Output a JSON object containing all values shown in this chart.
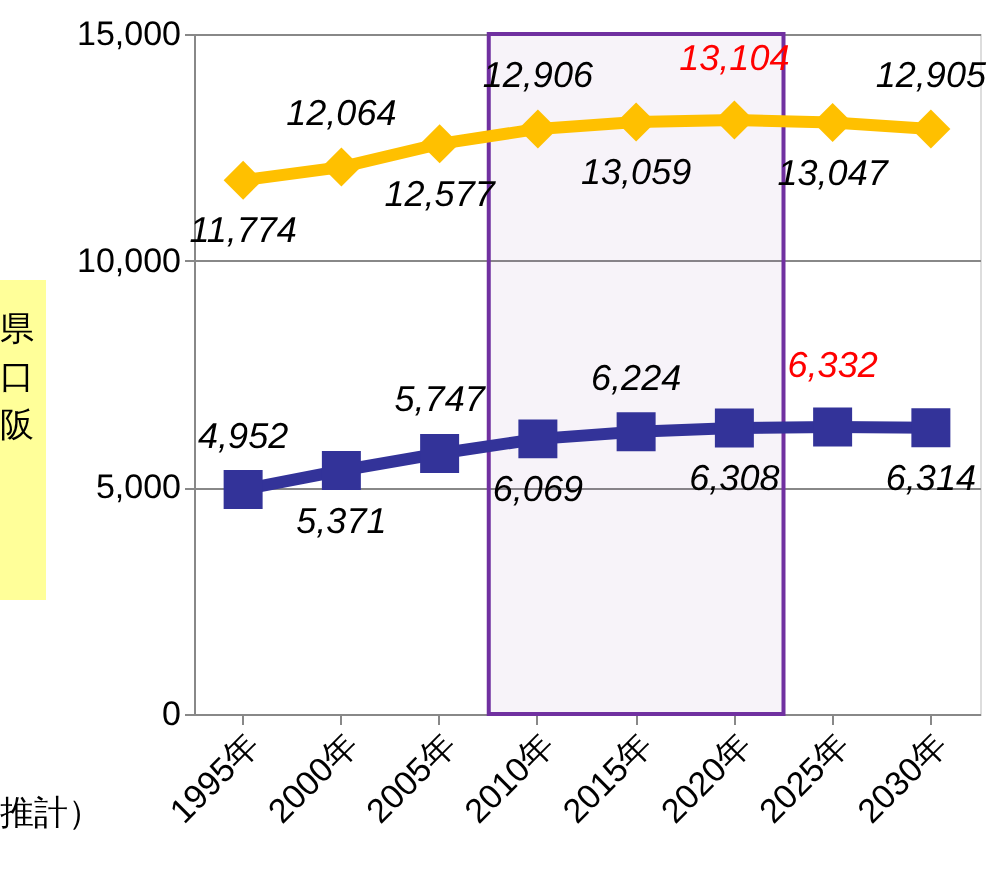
{
  "chart_data": {
    "type": "line",
    "categories": [
      "1995年",
      "2000年",
      "2005年",
      "2010年",
      "2015年",
      "2020年",
      "2025年",
      "2030年"
    ],
    "series": [
      {
        "color": "#ffc000",
        "marker": "diamond",
        "values": [
          11774,
          12064,
          12577,
          12906,
          13059,
          13104,
          13047,
          12905
        ],
        "value_labels": [
          "11,774",
          "12,064",
          "12,577",
          "12,906",
          "13,059",
          null,
          "13,047",
          "12,905"
        ]
      },
      {
        "color": "#333399",
        "marker": "square",
        "values": [
          4952,
          5371,
          5747,
          6069,
          6224,
          6308,
          6332,
          6314
        ],
        "value_labels": [
          "4,952",
          "5,371",
          "5,747",
          "6,069",
          "6,224",
          "6,308",
          null,
          "6,314"
        ]
      }
    ],
    "ylim": [
      0,
      15000
    ],
    "yticks": [
      {
        "value": 0,
        "label": "0"
      },
      {
        "value": 5000,
        "label": "5,000"
      },
      {
        "value": 10000,
        "label": "10,000"
      },
      {
        "value": 15000,
        "label": "15,000"
      }
    ],
    "grid": "y",
    "bands": [
      {
        "axis": "x",
        "from": "2010年",
        "to": "2020年",
        "color": "#7030a0"
      }
    ],
    "annotations": [
      {
        "text": "13,104",
        "x": "2020年",
        "y": 13104
      },
      {
        "text": "6,332",
        "x": "2025年",
        "y": 6332
      },
      "県口阪",
      "推計）"
    ]
  }
}
